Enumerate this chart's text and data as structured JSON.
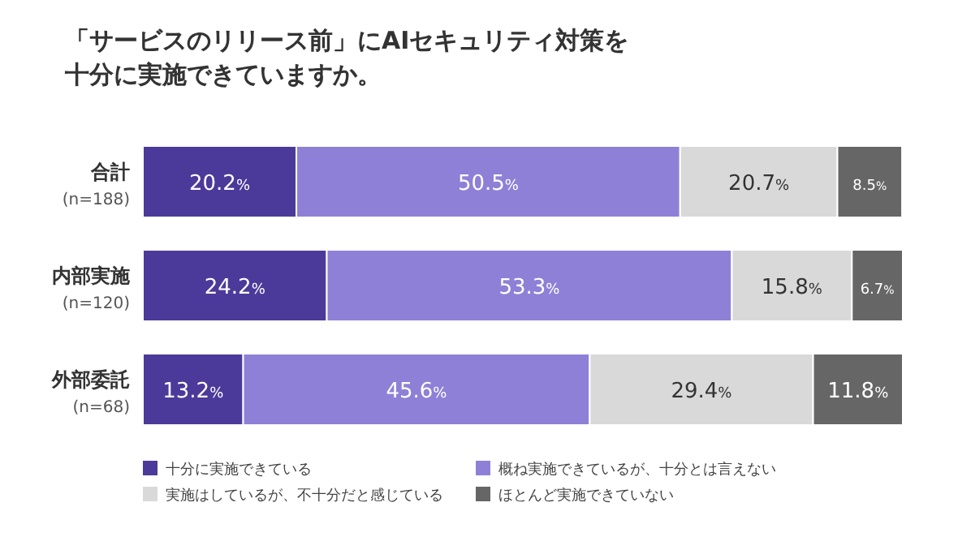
{
  "chart_data": {
    "type": "bar",
    "orientation": "horizontal",
    "stacked": true,
    "title": "「サービスのリリース前」にAIセキュリティ対策を十分に実施できていますか。",
    "categories": [
      "合計\n(n=188)",
      "内部実施\n(n=120)",
      "外部委託\n(n=68)"
    ],
    "series": [
      {
        "name": "十分に実施できている",
        "color": "#4b3a9a",
        "values": [
          20.2,
          24.2,
          13.2
        ],
        "value_labels": [
          "20.2%",
          "24.2%",
          "13.2%"
        ]
      },
      {
        "name": "概ね実施できているが、十分とは言えない",
        "color": "#8e80d6",
        "values": [
          50.5,
          53.3,
          45.6
        ],
        "value_labels": [
          "50.5%",
          "53.3%",
          "45.6%"
        ]
      },
      {
        "name": "実施はしているが、不十分だと感じている",
        "color": "#d9d9d9",
        "values": [
          20.7,
          15.8,
          29.4
        ],
        "value_labels": [
          "20.7%",
          "15.8%",
          "29.4%"
        ]
      },
      {
        "name": "ほとんど実施できていない",
        "color": "#666666",
        "values": [
          8.5,
          6.7,
          11.8
        ],
        "value_labels": [
          "8.5%",
          "6.7%",
          "11.8%"
        ]
      }
    ],
    "legend": "bottom"
  }
}
